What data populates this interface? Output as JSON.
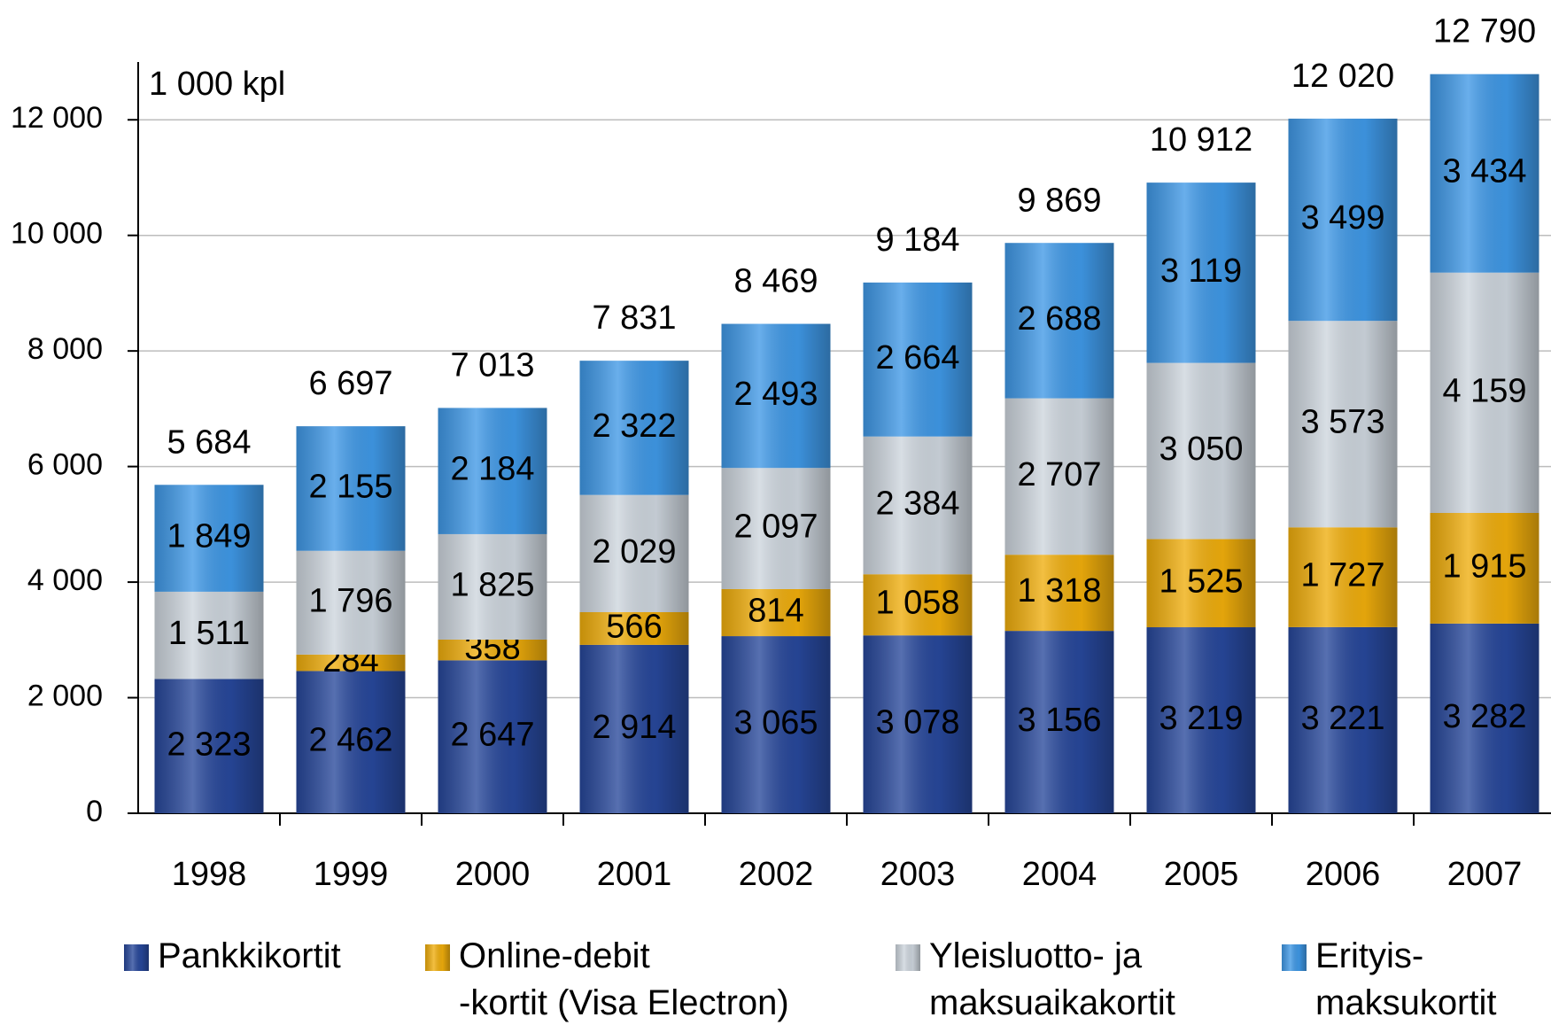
{
  "chart_data": {
    "type": "stacked_bar",
    "unit_label": "1 000 kpl",
    "categories": [
      "1998",
      "1999",
      "2000",
      "2001",
      "2002",
      "2003",
      "2004",
      "2005",
      "2006",
      "2007"
    ],
    "series": [
      {
        "name": "Pankkikortit",
        "color": "#27479a",
        "values": [
          2323,
          2462,
          2647,
          2914,
          3065,
          3078,
          3156,
          3219,
          3221,
          3282
        ],
        "value_labels": [
          "2 323",
          "2 462",
          "2 647",
          "2 914",
          "3 065",
          "3 078",
          "3 156",
          "3 219",
          "3 221",
          "3 282"
        ]
      },
      {
        "name": "Online-debit\n-kortit (Visa Electron)",
        "color": "#efad0c",
        "values": [
          null,
          284,
          358,
          566,
          814,
          1058,
          1318,
          1525,
          1727,
          1915
        ],
        "value_labels": [
          null,
          "284",
          "358",
          "566",
          "814",
          "1 058",
          "1 318",
          "1 525",
          "1 727",
          "1 915"
        ]
      },
      {
        "name": "Yleisluotto- ja\nmaksuaikakortit",
        "color": "#cdd5dd",
        "values": [
          1511,
          1796,
          1825,
          2029,
          2097,
          2384,
          2707,
          3050,
          3573,
          4159
        ],
        "value_labels": [
          "1 511",
          "1 796",
          "1 825",
          "2 029",
          "2 097",
          "2 384",
          "2 707",
          "3 050",
          "3 573",
          "4 159"
        ]
      },
      {
        "name": "Erityis-\nmaksukortit",
        "color": "#3f98e6",
        "values": [
          1849,
          2155,
          2184,
          2322,
          2493,
          2664,
          2688,
          3119,
          3499,
          3434
        ],
        "value_labels": [
          "1 849",
          "2 155",
          "2 184",
          "2 322",
          "2 493",
          "2 664",
          "2 688",
          "3 119",
          "3 499",
          "3 434"
        ]
      }
    ],
    "totals": [
      5684,
      6697,
      7013,
      7831,
      8469,
      9184,
      9869,
      10912,
      12020,
      12790
    ],
    "total_labels": [
      "5 684",
      "6 697",
      "7 013",
      "7 831",
      "8 469",
      "9 184",
      "9 869",
      "10 912",
      "12 020",
      "12 790"
    ],
    "ylim": [
      0,
      13000
    ],
    "yticks": [
      0,
      {
        "value": 2000,
        "label": "2 000"
      },
      {
        "value": 4000,
        "label": "4 000"
      },
      {
        "value": 6000,
        "label": "6 000"
      },
      {
        "value": 8000,
        "label": "8 000"
      },
      {
        "value": 10000,
        "label": "10 000"
      },
      {
        "value": 12000,
        "label": "12 000"
      }
    ],
    "grid": true,
    "label_colors": [
      "#ffffff",
      "#000000",
      "#000000",
      "#000000"
    ]
  }
}
